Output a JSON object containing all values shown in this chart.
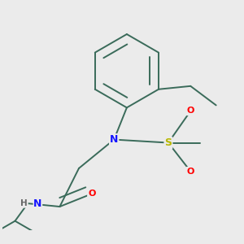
{
  "bg_color": "#ebebeb",
  "bond_color": "#3a6b5a",
  "atom_colors": {
    "N": "#1515ff",
    "O": "#ff0000",
    "S": "#b8b800",
    "H": "#666666",
    "C": "#3a6b5a"
  },
  "bond_width": 1.4,
  "fig_size": [
    3.0,
    3.0
  ],
  "dpi": 100
}
